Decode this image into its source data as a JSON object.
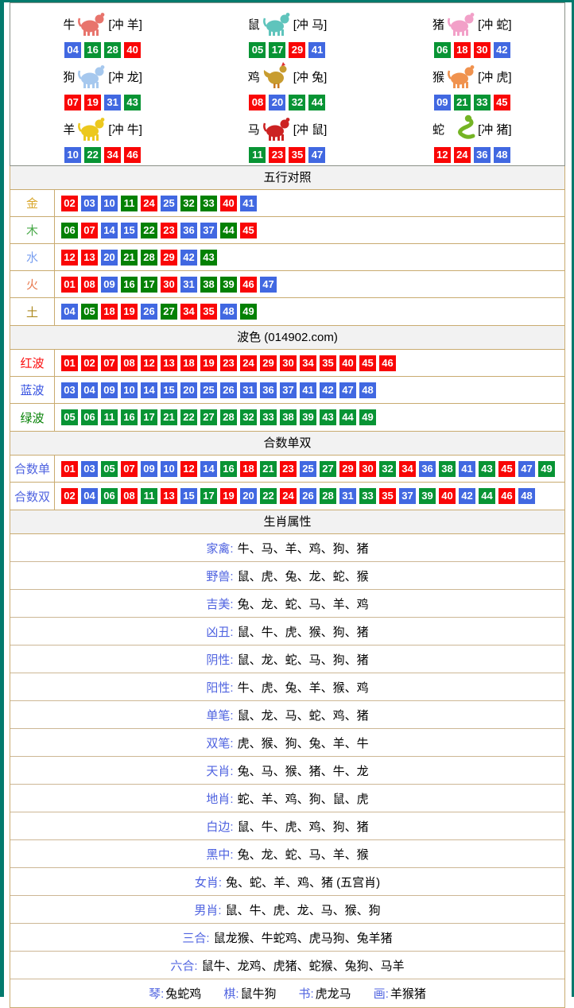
{
  "colors": {
    "red": "#f90606",
    "blue": "#4168e1",
    "green": "#089434",
    "green_dark": "#048104",
    "frame": "#037a6d",
    "table_border": "#c9ab70",
    "row_border": "#cdb795",
    "header_bg": "#f2f2f2",
    "label_blue": "#4f63e0"
  },
  "zodiac": {
    "cells": [
      {
        "key": "ox",
        "name": "牛",
        "clash": "[冲 羊]",
        "icon_color": "#e8746c",
        "shape": "quad",
        "nums": [
          [
            "04",
            "b"
          ],
          [
            "16",
            "g"
          ],
          [
            "28",
            "g"
          ],
          [
            "40",
            "r"
          ]
        ]
      },
      {
        "key": "rat",
        "name": "鼠",
        "clash": "[冲 马]",
        "icon_color": "#5fc4bc",
        "shape": "quad",
        "nums": [
          [
            "05",
            "g"
          ],
          [
            "17",
            "g"
          ],
          [
            "29",
            "r"
          ],
          [
            "41",
            "b"
          ]
        ]
      },
      {
        "key": "pig",
        "name": "猪",
        "clash": "[冲 蛇]",
        "icon_color": "#f2a0c8",
        "shape": "quad",
        "nums": [
          [
            "06",
            "g"
          ],
          [
            "18",
            "r"
          ],
          [
            "30",
            "r"
          ],
          [
            "42",
            "b"
          ]
        ]
      },
      {
        "key": "dog",
        "name": "狗",
        "clash": "[冲 龙]",
        "icon_color": "#a6c8ee",
        "shape": "quad",
        "nums": [
          [
            "07",
            "r"
          ],
          [
            "19",
            "r"
          ],
          [
            "31",
            "b"
          ],
          [
            "43",
            "g"
          ]
        ]
      },
      {
        "key": "rooster",
        "name": "鸡",
        "clash": "[冲 兔]",
        "icon_color": "#c89c30",
        "shape": "bird",
        "nums": [
          [
            "08",
            "r"
          ],
          [
            "20",
            "b"
          ],
          [
            "32",
            "g"
          ],
          [
            "44",
            "g"
          ]
        ]
      },
      {
        "key": "monkey",
        "name": "猴",
        "clash": "[冲 虎]",
        "icon_color": "#f0924e",
        "shape": "quad",
        "nums": [
          [
            "09",
            "b"
          ],
          [
            "21",
            "g"
          ],
          [
            "33",
            "g"
          ],
          [
            "45",
            "r"
          ]
        ]
      },
      {
        "key": "goat",
        "name": "羊",
        "clash": "[冲 牛]",
        "icon_color": "#ecc81e",
        "shape": "quad",
        "nums": [
          [
            "10",
            "b"
          ],
          [
            "22",
            "g"
          ],
          [
            "34",
            "r"
          ],
          [
            "46",
            "r"
          ]
        ]
      },
      {
        "key": "horse",
        "name": "马",
        "clash": "[冲 鼠]",
        "icon_color": "#cc2222",
        "shape": "quad",
        "nums": [
          [
            "11",
            "g"
          ],
          [
            "23",
            "r"
          ],
          [
            "35",
            "r"
          ],
          [
            "47",
            "b"
          ]
        ]
      },
      {
        "key": "snake",
        "name": "蛇",
        "clash": "[冲 猪]",
        "icon_color": "#74b424",
        "shape": "snake",
        "nums": [
          [
            "12",
            "r"
          ],
          [
            "24",
            "r"
          ],
          [
            "36",
            "b"
          ],
          [
            "48",
            "b"
          ]
        ]
      }
    ]
  },
  "wuxing": {
    "title": "五行对照",
    "rows": [
      {
        "key": "gold",
        "label": "金",
        "label_color": "#d9a62a",
        "nums": [
          [
            "02",
            "r"
          ],
          [
            "03",
            "b"
          ],
          [
            "10",
            "b"
          ],
          [
            "11",
            "gd"
          ],
          [
            "24",
            "r"
          ],
          [
            "25",
            "b"
          ],
          [
            "32",
            "gd"
          ],
          [
            "33",
            "gd"
          ],
          [
            "40",
            "r"
          ],
          [
            "41",
            "b"
          ]
        ]
      },
      {
        "key": "wood",
        "label": "木",
        "label_color": "#49a949",
        "nums": [
          [
            "06",
            "gd"
          ],
          [
            "07",
            "r"
          ],
          [
            "14",
            "b"
          ],
          [
            "15",
            "b"
          ],
          [
            "22",
            "gd"
          ],
          [
            "23",
            "r"
          ],
          [
            "36",
            "b"
          ],
          [
            "37",
            "b"
          ],
          [
            "44",
            "gd"
          ],
          [
            "45",
            "r"
          ]
        ]
      },
      {
        "key": "water",
        "label": "水",
        "label_color": "#7aa0f0",
        "nums": [
          [
            "12",
            "r"
          ],
          [
            "13",
            "r"
          ],
          [
            "20",
            "b"
          ],
          [
            "21",
            "gd"
          ],
          [
            "28",
            "gd"
          ],
          [
            "29",
            "r"
          ],
          [
            "42",
            "b"
          ],
          [
            "43",
            "gd"
          ]
        ]
      },
      {
        "key": "fire",
        "label": "火",
        "label_color": "#e87a50",
        "nums": [
          [
            "01",
            "r"
          ],
          [
            "08",
            "r"
          ],
          [
            "09",
            "b"
          ],
          [
            "16",
            "gd"
          ],
          [
            "17",
            "gd"
          ],
          [
            "30",
            "r"
          ],
          [
            "31",
            "b"
          ],
          [
            "38",
            "gd"
          ],
          [
            "39",
            "gd"
          ],
          [
            "46",
            "r"
          ],
          [
            "47",
            "b"
          ]
        ]
      },
      {
        "key": "earth",
        "label": "土",
        "label_color": "#ad8a20",
        "nums": [
          [
            "04",
            "b"
          ],
          [
            "05",
            "gd"
          ],
          [
            "18",
            "r"
          ],
          [
            "19",
            "r"
          ],
          [
            "26",
            "b"
          ],
          [
            "27",
            "gd"
          ],
          [
            "34",
            "r"
          ],
          [
            "35",
            "r"
          ],
          [
            "48",
            "b"
          ],
          [
            "49",
            "gd"
          ]
        ]
      }
    ]
  },
  "bose": {
    "title": "波色 (014902.com)",
    "rows": [
      {
        "key": "red-wave",
        "label": "红波",
        "label_color": "#fb0b0b",
        "nums": [
          [
            "01",
            "r"
          ],
          [
            "02",
            "r"
          ],
          [
            "07",
            "r"
          ],
          [
            "08",
            "r"
          ],
          [
            "12",
            "r"
          ],
          [
            "13",
            "r"
          ],
          [
            "18",
            "r"
          ],
          [
            "19",
            "r"
          ],
          [
            "23",
            "r"
          ],
          [
            "24",
            "r"
          ],
          [
            "29",
            "r"
          ],
          [
            "30",
            "r"
          ],
          [
            "34",
            "r"
          ],
          [
            "35",
            "r"
          ],
          [
            "40",
            "r"
          ],
          [
            "45",
            "r"
          ],
          [
            "46",
            "r"
          ]
        ]
      },
      {
        "key": "blue-wave",
        "label": "蓝波",
        "label_color": "#3450e0",
        "nums": [
          [
            "03",
            "b"
          ],
          [
            "04",
            "b"
          ],
          [
            "09",
            "b"
          ],
          [
            "10",
            "b"
          ],
          [
            "14",
            "b"
          ],
          [
            "15",
            "b"
          ],
          [
            "20",
            "b"
          ],
          [
            "25",
            "b"
          ],
          [
            "26",
            "b"
          ],
          [
            "31",
            "b"
          ],
          [
            "36",
            "b"
          ],
          [
            "37",
            "b"
          ],
          [
            "41",
            "b"
          ],
          [
            "42",
            "b"
          ],
          [
            "47",
            "b"
          ],
          [
            "48",
            "b"
          ]
        ]
      },
      {
        "key": "green-wave",
        "label": "绿波",
        "label_color": "#058205",
        "nums": [
          [
            "05",
            "g"
          ],
          [
            "06",
            "g"
          ],
          [
            "11",
            "g"
          ],
          [
            "16",
            "g"
          ],
          [
            "17",
            "g"
          ],
          [
            "21",
            "g"
          ],
          [
            "22",
            "g"
          ],
          [
            "27",
            "g"
          ],
          [
            "28",
            "g"
          ],
          [
            "32",
            "g"
          ],
          [
            "33",
            "g"
          ],
          [
            "38",
            "g"
          ],
          [
            "39",
            "g"
          ],
          [
            "43",
            "g"
          ],
          [
            "44",
            "g"
          ],
          [
            "49",
            "g"
          ]
        ]
      }
    ]
  },
  "heshu": {
    "title": "合数单双",
    "rows": [
      {
        "key": "sum-odd",
        "label": "合数单",
        "label_color": "#4f63e0",
        "nums": [
          [
            "01",
            "r"
          ],
          [
            "03",
            "b"
          ],
          [
            "05",
            "g"
          ],
          [
            "07",
            "r"
          ],
          [
            "09",
            "b"
          ],
          [
            "10",
            "b"
          ],
          [
            "12",
            "r"
          ],
          [
            "14",
            "b"
          ],
          [
            "16",
            "g"
          ],
          [
            "18",
            "r"
          ],
          [
            "21",
            "g"
          ],
          [
            "23",
            "r"
          ],
          [
            "25",
            "b"
          ],
          [
            "27",
            "g"
          ],
          [
            "29",
            "r"
          ],
          [
            "30",
            "r"
          ],
          [
            "32",
            "g"
          ],
          [
            "34",
            "r"
          ],
          [
            "36",
            "b"
          ],
          [
            "38",
            "g"
          ],
          [
            "41",
            "b"
          ],
          [
            "43",
            "g"
          ],
          [
            "45",
            "r"
          ],
          [
            "47",
            "b"
          ],
          [
            "49",
            "g"
          ]
        ]
      },
      {
        "key": "sum-even",
        "label": "合数双",
        "label_color": "#4f63e0",
        "nums": [
          [
            "02",
            "r"
          ],
          [
            "04",
            "b"
          ],
          [
            "06",
            "g"
          ],
          [
            "08",
            "r"
          ],
          [
            "11",
            "g"
          ],
          [
            "13",
            "r"
          ],
          [
            "15",
            "b"
          ],
          [
            "17",
            "g"
          ],
          [
            "19",
            "r"
          ],
          [
            "20",
            "b"
          ],
          [
            "22",
            "g"
          ],
          [
            "24",
            "r"
          ],
          [
            "26",
            "b"
          ],
          [
            "28",
            "g"
          ],
          [
            "31",
            "b"
          ],
          [
            "33",
            "g"
          ],
          [
            "35",
            "r"
          ],
          [
            "37",
            "b"
          ],
          [
            "39",
            "g"
          ],
          [
            "40",
            "r"
          ],
          [
            "42",
            "b"
          ],
          [
            "44",
            "g"
          ],
          [
            "46",
            "r"
          ],
          [
            "48",
            "b"
          ]
        ]
      }
    ]
  },
  "shengxiao": {
    "title": "生肖属性",
    "label_suffix": ":",
    "rows": [
      {
        "key": "domestic",
        "label": "家禽",
        "value": "牛、马、羊、鸡、狗、猪"
      },
      {
        "key": "wild",
        "label": "野兽",
        "value": "鼠、虎、兔、龙、蛇、猴"
      },
      {
        "key": "auspicious",
        "label": "吉美",
        "value": "兔、龙、蛇、马、羊、鸡"
      },
      {
        "key": "ominous",
        "label": "凶丑",
        "value": "鼠、牛、虎、猴、狗、猪"
      },
      {
        "key": "yin",
        "label": "阴性",
        "value": "鼠、龙、蛇、马、狗、猪"
      },
      {
        "key": "yang",
        "label": "阳性",
        "value": "牛、虎、兔、羊、猴、鸡"
      },
      {
        "key": "single-stroke",
        "label": "单笔",
        "value": "鼠、龙、马、蛇、鸡、猪"
      },
      {
        "key": "double-stroke",
        "label": "双笔",
        "value": "虎、猴、狗、兔、羊、牛"
      },
      {
        "key": "sky",
        "label": "天肖",
        "value": "兔、马、猴、猪、牛、龙"
      },
      {
        "key": "earth",
        "label": "地肖",
        "value": "蛇、羊、鸡、狗、鼠、虎"
      },
      {
        "key": "white-edge",
        "label": "白边",
        "value": "鼠、牛、虎、鸡、狗、猪"
      },
      {
        "key": "black-middle",
        "label": "黑中",
        "value": "兔、龙、蛇、马、羊、猴"
      },
      {
        "key": "female",
        "label": "女肖",
        "value": "兔、蛇、羊、鸡、猪 (五宫肖)"
      },
      {
        "key": "male",
        "label": "男肖",
        "value": "鼠、牛、虎、龙、马、猴、狗"
      },
      {
        "key": "three-harmony",
        "label": "三合",
        "value": "鼠龙猴、牛蛇鸡、虎马狗、兔羊猪"
      },
      {
        "key": "six-harmony",
        "label": "六合",
        "value": "鼠牛、龙鸡、虎猪、蛇猴、兔狗、马羊"
      }
    ],
    "last_row": {
      "key": "qin-qi-shu-hua",
      "pair_suffix": ":",
      "pairs": [
        {
          "label": "琴",
          "value": "兔蛇鸡"
        },
        {
          "label": "棋",
          "value": "鼠牛狗"
        },
        {
          "label": "书",
          "value": "虎龙马"
        },
        {
          "label": "画",
          "value": "羊猴猪"
        }
      ]
    }
  }
}
